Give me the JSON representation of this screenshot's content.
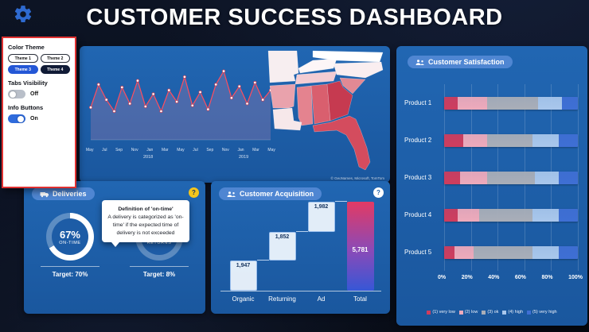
{
  "header": {
    "title": "CUSTOMER SUCCESS DASHBOARD"
  },
  "settings_panel": {
    "color_theme_label": "Color Theme",
    "themes": [
      "Theme 1",
      "Theme 2",
      "Theme 3",
      "Theme 4"
    ],
    "selected_theme": "Theme 3",
    "tabs_visibility_label": "Tabs Visibility",
    "tabs_visibility_state": "Off",
    "info_buttons_label": "Info Buttons",
    "info_buttons_state": "On"
  },
  "map": {
    "attribution": "© GeoNames, Microsoft, TomTom",
    "states": [
      {
        "name": "Missouri",
        "color": "#f7eef0"
      },
      {
        "name": "Kentucky",
        "color": "#fdf6f7"
      },
      {
        "name": "Virginia",
        "color": "#ffffff"
      },
      {
        "name": "North Carolina",
        "color": "#faeef0"
      },
      {
        "name": "Tennessee",
        "color": "#f3ccd2"
      },
      {
        "name": "Arkansas",
        "color": "#e9a2ac"
      },
      {
        "name": "South Carolina",
        "color": "#e18994"
      },
      {
        "name": "Mississippi",
        "color": "#e4838f"
      },
      {
        "name": "Alabama",
        "color": "#d95f6e"
      },
      {
        "name": "Georgia",
        "color": "#c63a50"
      },
      {
        "name": "Louisiana",
        "color": "#f6e8ea"
      },
      {
        "name": "Florida",
        "color": "#d44c5e"
      }
    ]
  },
  "deliveries": {
    "title": "Deliveries",
    "help_label": "?",
    "tooltip": {
      "title": "Definition of 'on-time'",
      "body": "A delivery is categorized as 'on-time' if the expected time of delivery is not exceeded"
    }
  },
  "acquisition": {
    "title": "Customer Acquisition",
    "help_label": "?"
  },
  "satisfaction": {
    "title": "Customer Satisfaction"
  },
  "chart_data": [
    {
      "id": "monthly_trend",
      "type": "line",
      "x_ticks": [
        "May",
        "Jul",
        "Sep",
        "Nov",
        "Jan",
        "Mar",
        "May",
        "Jul",
        "Sep",
        "Nov",
        "Jan",
        "Mar",
        "May"
      ],
      "year_labels": [
        "2018",
        "2019"
      ],
      "values": [
        34,
        58,
        42,
        30,
        55,
        38,
        62,
        35,
        48,
        30,
        52,
        40,
        66,
        36,
        50,
        32,
        58,
        72,
        44,
        56,
        38,
        60,
        42,
        52
      ],
      "ylim": [
        0,
        80
      ],
      "series_color": "#ff4d5e"
    },
    {
      "id": "customer_satisfaction",
      "type": "stacked_bar_100pct",
      "title": "Customer Satisfaction",
      "categories": [
        "Product 1",
        "Product 2",
        "Product 3",
        "Product 4",
        "Product 5"
      ],
      "series": [
        {
          "name": "(1) very low",
          "color": "#cf3d5e",
          "values": [
            10,
            14,
            12,
            10,
            8
          ]
        },
        {
          "name": "(2) low",
          "color": "#eeaabb",
          "values": [
            22,
            18,
            20,
            16,
            14
          ]
        },
        {
          "name": "(3) ok",
          "color": "#a9aeb8",
          "values": [
            38,
            34,
            36,
            40,
            44
          ]
        },
        {
          "name": "(4) high",
          "color": "#a9c7ec",
          "values": [
            18,
            20,
            18,
            20,
            20
          ]
        },
        {
          "name": "(5) very high",
          "color": "#3f6fd4",
          "values": [
            12,
            14,
            14,
            14,
            14
          ]
        }
      ],
      "axis_ticks": [
        "0%",
        "20%",
        "40%",
        "60%",
        "80%",
        "100%"
      ],
      "legend_position": "bottom"
    },
    {
      "id": "deliveries_kpis",
      "type": "kpi_donuts",
      "title": "Deliveries",
      "kpis": [
        {
          "value": "67%",
          "pct": 67,
          "label": "ON-TIME",
          "target": "Target: 70%"
        },
        {
          "value": "10%",
          "pct": 10,
          "label": "RETURNS",
          "target": "Target: 8%"
        }
      ]
    },
    {
      "id": "customer_acquisition",
      "type": "waterfall",
      "title": "Customer Acquisition",
      "categories": [
        "Organic",
        "Returning",
        "Ad",
        "Total"
      ],
      "values": [
        1947,
        1852,
        1982,
        5781
      ],
      "labels": [
        "1,947",
        "1,852",
        "1,982",
        "5,781"
      ]
    }
  ]
}
